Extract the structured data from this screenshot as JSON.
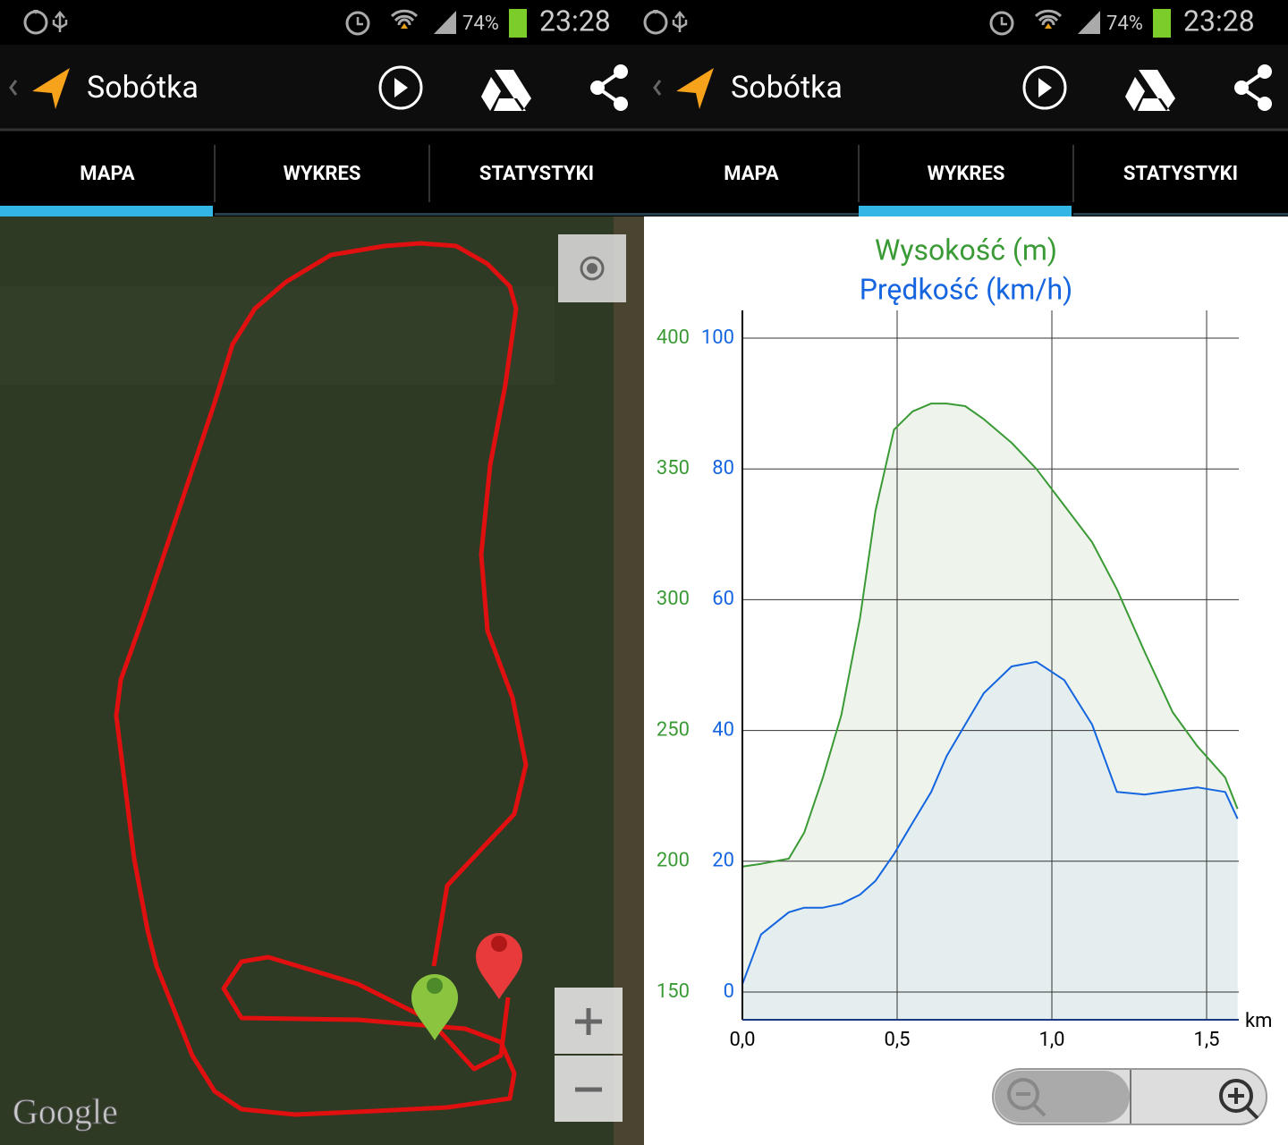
{
  "screens": [
    {
      "status": {
        "battery": "74%",
        "time": "23:28"
      },
      "app_bar": {
        "title": "Sobótka"
      },
      "tabs": [
        "MAPA",
        "WYKRES",
        "STATYSTYKI"
      ],
      "active_tab": 0,
      "map": {
        "attribution": "Google"
      }
    },
    {
      "status": {
        "battery": "74%",
        "time": "23:28"
      },
      "app_bar": {
        "title": "Sobótka"
      },
      "tabs": [
        "MAPA",
        "WYKRES",
        "STATYSTYKI"
      ],
      "active_tab": 1
    }
  ],
  "chart_data": {
    "type": "line",
    "title": "Wysokość (m)",
    "subtitle": "Prędkość (km/h)",
    "x_label": "km",
    "x": [
      0.0,
      0.06,
      0.15,
      0.2,
      0.26,
      0.32,
      0.38,
      0.43,
      0.49,
      0.55,
      0.61,
      0.66,
      0.72,
      0.78,
      0.87,
      0.95,
      1.04,
      1.13,
      1.21,
      1.3,
      1.39,
      1.47,
      1.56,
      1.6
    ],
    "series": [
      {
        "name": "Wysokość (m)",
        "color": "#3a9a35",
        "fill": "#ebf2e8",
        "axis": "y",
        "values": [
          198,
          199,
          201,
          211,
          232,
          256,
          293,
          334,
          365,
          372,
          375,
          375,
          374,
          369,
          360,
          350,
          336,
          322,
          304,
          280,
          257,
          244,
          232,
          220
        ]
      },
      {
        "name": "Prędkość (km/h)",
        "color": "#1565e0",
        "fill": "#e2ecf0",
        "axis": "y2",
        "values": [
          1.2,
          8.8,
          12.2,
          12.9,
          12.9,
          13.5,
          14.9,
          17.0,
          21.1,
          25.9,
          30.6,
          36.1,
          40.9,
          45.7,
          49.8,
          50.5,
          47.7,
          40.9,
          30.6,
          30.2,
          30.8,
          31.3,
          30.6,
          26.5
        ]
      }
    ],
    "xlim": [
      0,
      1.604
    ],
    "xticks": [
      {
        "value": 0,
        "label": "0,0"
      },
      {
        "value": 0.5,
        "label": "0,5"
      },
      {
        "value": 1,
        "label": "1,0"
      },
      {
        "value": 1.5,
        "label": "1,5"
      }
    ],
    "ylim": [
      139.4,
      410.6
    ],
    "yticks": [
      150,
      200,
      250,
      300,
      350,
      400
    ],
    "y2lim": [
      -4.24,
      104.24
    ],
    "y2ticks": [
      0,
      20,
      40,
      60,
      80,
      100
    ],
    "grid": true
  }
}
